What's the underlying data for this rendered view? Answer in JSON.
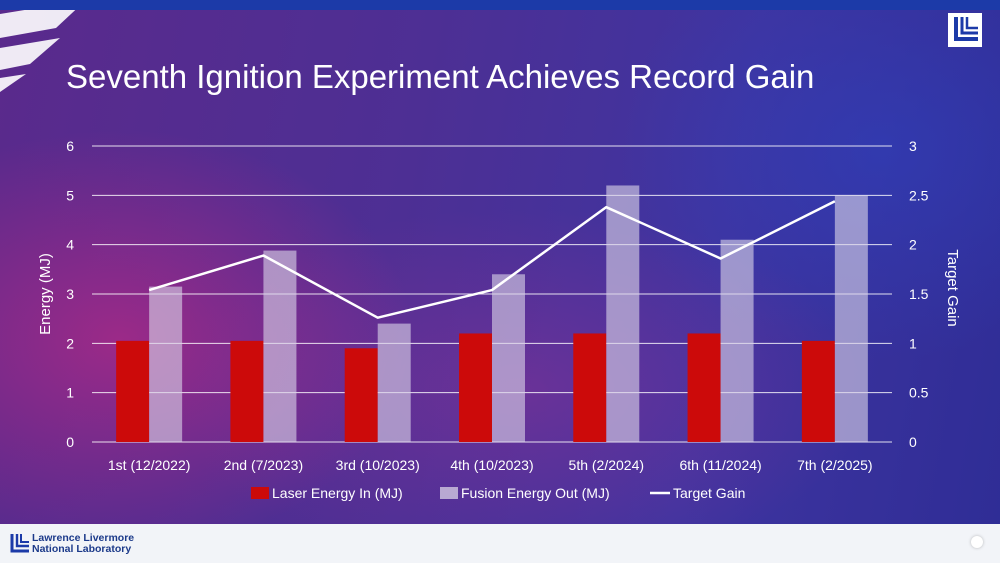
{
  "title": "Seventh Ignition Experiment Achieves Record Gain",
  "footer": {
    "lab_line1": "Lawrence Livermore",
    "lab_line2": "National Laboratory"
  },
  "colors": {
    "laser": "#cc0a0a",
    "fusion": "#d9d2e6",
    "gain_line": "#ffffff",
    "gridline": "#ffffff"
  },
  "chart_data": {
    "type": "bar",
    "title": "Seventh Ignition Experiment Achieves Record Gain",
    "categories": [
      "1st (12/2022)",
      "2nd (7/2023)",
      "3rd (10/2023)",
      "4th (10/2023)",
      "5th (2/2024)",
      "6th (11/2024)",
      "7th (2/2025)"
    ],
    "series": [
      {
        "name": "Laser Energy In (MJ)",
        "type": "bar",
        "axis": "left",
        "values": [
          2.05,
          2.05,
          1.9,
          2.2,
          2.2,
          2.2,
          2.05
        ]
      },
      {
        "name": "Fusion Energy Out (MJ)",
        "type": "bar",
        "axis": "left",
        "values": [
          3.15,
          3.88,
          2.4,
          3.4,
          5.2,
          4.1,
          5.0
        ]
      },
      {
        "name": "Target Gain",
        "type": "line",
        "axis": "right",
        "values": [
          1.54,
          1.89,
          1.26,
          1.54,
          2.38,
          1.86,
          2.44
        ]
      }
    ],
    "ylabel": "Energy (MJ)",
    "ylim": [
      0,
      6
    ],
    "yticks": [
      "0",
      "1",
      "2",
      "3",
      "4",
      "5",
      "6"
    ],
    "y2label": "Target Gain",
    "y2lim": [
      0,
      3
    ],
    "y2ticks": [
      "0",
      "0.5",
      "1",
      "1.5",
      "2",
      "2.5",
      "3"
    ],
    "grid": true,
    "legend_position": "bottom"
  }
}
